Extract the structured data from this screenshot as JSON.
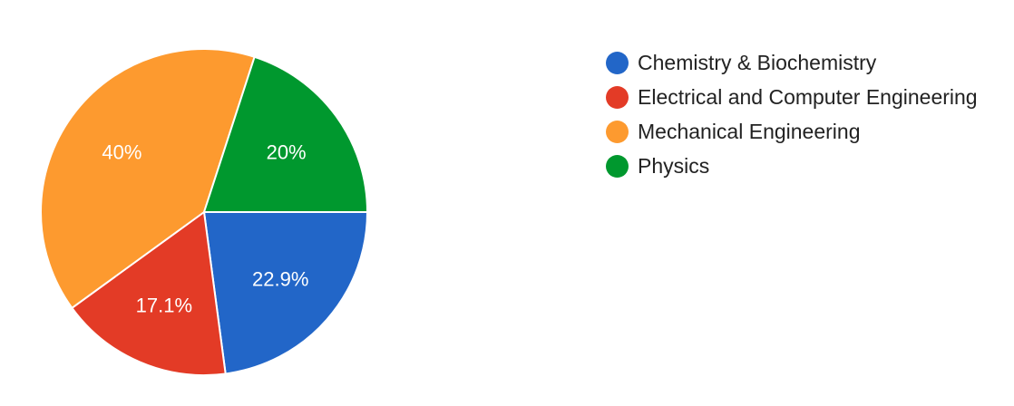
{
  "chart_data": {
    "type": "pie",
    "title": "",
    "legend_position": "right",
    "slices": [
      {
        "label": "Chemistry & Biochemistry",
        "value": 22.9,
        "display": "22.9%",
        "color": "#2266c8"
      },
      {
        "label": "Electrical and Computer Engineering",
        "value": 17.1,
        "display": "17.1%",
        "color": "#e33b26"
      },
      {
        "label": "Mechanical Engineering",
        "value": 40,
        "display": "40%",
        "color": "#fd9a2f"
      },
      {
        "label": "Physics",
        "value": 20,
        "display": "20%",
        "color": "#00982e"
      }
    ]
  }
}
